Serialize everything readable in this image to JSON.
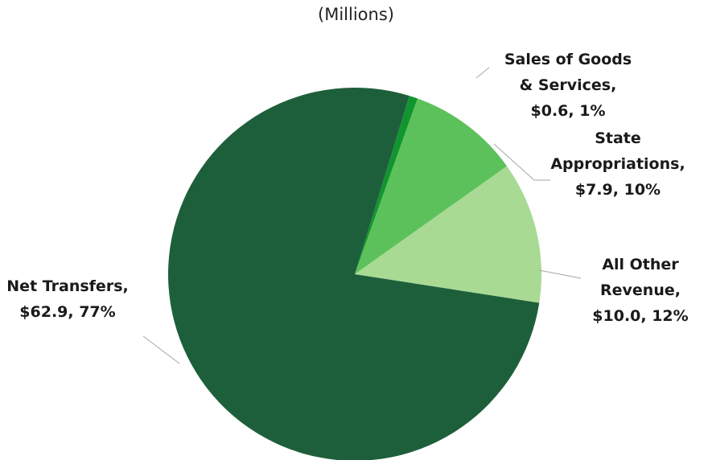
{
  "chart_data": {
    "type": "pie",
    "subtitle": "(Millions)",
    "start_angle_deg": 17,
    "direction": "clockwise",
    "slices": [
      {
        "name": "Sales of Goods & Services",
        "value": 0.6,
        "percent": 1,
        "color": "#11962f",
        "label_lines": [
          "Sales of Goods",
          "& Services,",
          "$0.6, 1%"
        ]
      },
      {
        "name": "State Appropriations",
        "value": 7.9,
        "percent": 10,
        "color": "#5dc15b",
        "label_lines": [
          "State",
          "Appropriations,",
          "$7.9, 10%"
        ]
      },
      {
        "name": "All Other Revenue",
        "value": 10.0,
        "percent": 12,
        "color": "#a8da94",
        "label_lines": [
          "All Other",
          "Revenue,",
          "$10.0, 12%"
        ]
      },
      {
        "name": "Net Transfers",
        "value": 62.9,
        "percent": 77,
        "color": "#1e5f3b",
        "label_lines": [
          "Net Transfers,",
          "$62.9, 77%"
        ]
      }
    ]
  }
}
